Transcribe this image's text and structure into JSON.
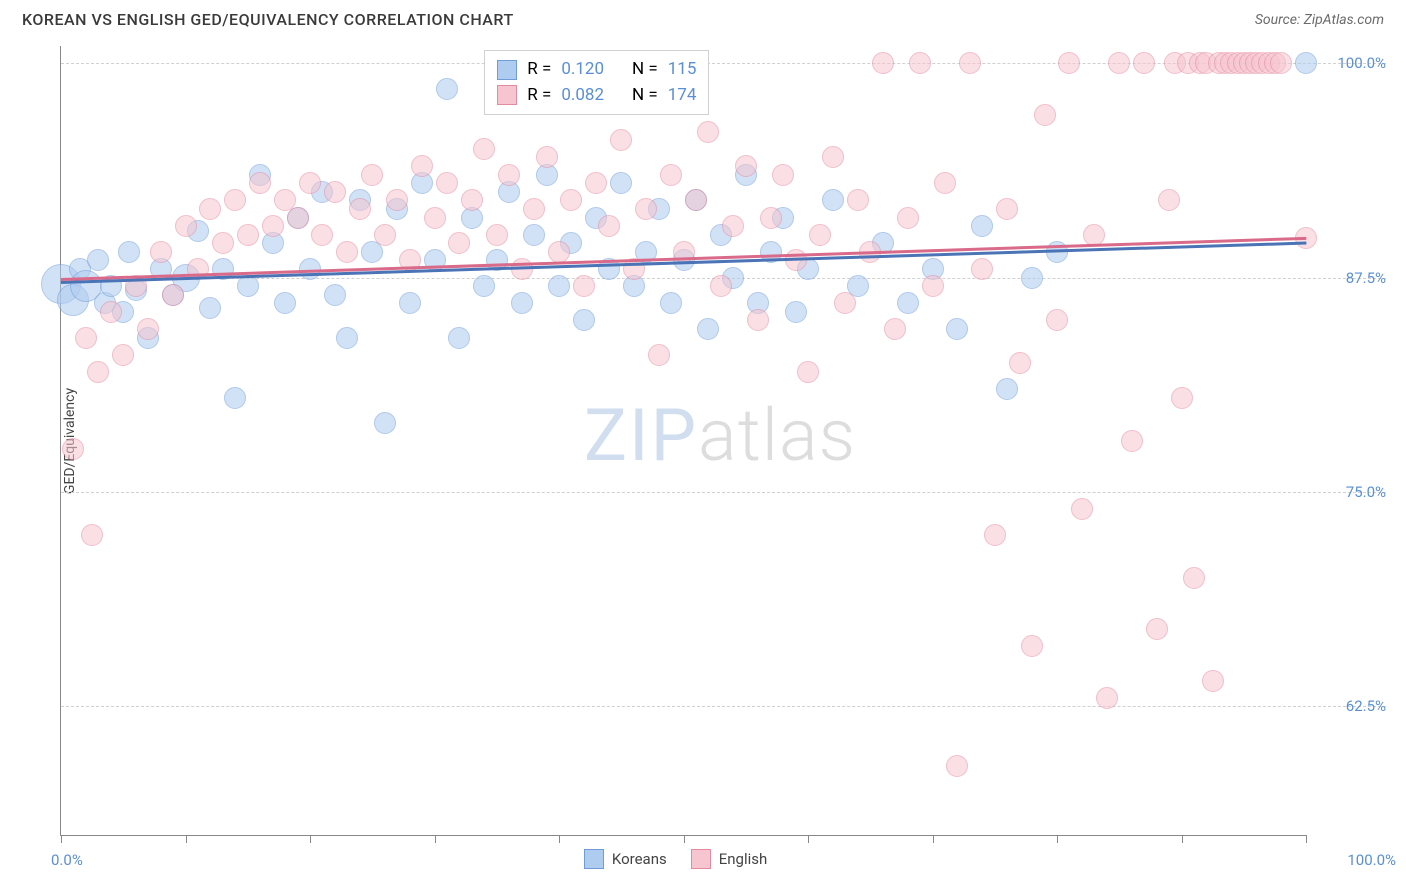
{
  "header": {
    "title": "KOREAN VS ENGLISH GED/EQUIVALENCY CORRELATION CHART",
    "source": "Source: ZipAtlas.com"
  },
  "chart": {
    "type": "scatter",
    "yaxis_title": "GED/Equivalency",
    "background_color": "#ffffff",
    "grid_color": "#d0d0d0",
    "axis_color": "#888888",
    "xlim": [
      0,
      100
    ],
    "ylim": [
      55,
      101
    ],
    "xticks": [
      0,
      10,
      20,
      30,
      40,
      50,
      60,
      70,
      80,
      90,
      100
    ],
    "xtick_labels": {
      "left": "0.0%",
      "right": "100.0%"
    },
    "yticks": [
      {
        "v": 62.5,
        "label": "62.5%"
      },
      {
        "v": 75.0,
        "label": "75.0%"
      },
      {
        "v": 87.5,
        "label": "87.5%"
      },
      {
        "v": 100.0,
        "label": "100.0%"
      }
    ],
    "tick_label_color": "#5a8fd6",
    "tick_label_fontsize": 15,
    "watermark": {
      "part1": "ZIP",
      "part2": "atlas"
    },
    "series": [
      {
        "name": "Koreans",
        "fill": "#aeccf0",
        "stroke": "#6f9dd9",
        "marker_radius": 11,
        "R_label": "R =",
        "R": "0.120",
        "N_label": "N =",
        "N": "115",
        "trend": {
          "x1": 0,
          "y1": 87.3,
          "x2": 100,
          "y2": 89.6,
          "color": "#4a74b5",
          "width": 3
        },
        "points": [
          {
            "x": 0,
            "y": 87.1,
            "r": 20
          },
          {
            "x": 1,
            "y": 86.2,
            "r": 16
          },
          {
            "x": 1.5,
            "y": 88.0
          },
          {
            "x": 2,
            "y": 87.0,
            "r": 16
          },
          {
            "x": 3,
            "y": 88.5
          },
          {
            "x": 3.5,
            "y": 86.0
          },
          {
            "x": 4,
            "y": 87.0
          },
          {
            "x": 5,
            "y": 85.5
          },
          {
            "x": 5.5,
            "y": 89.0
          },
          {
            "x": 6,
            "y": 86.8
          },
          {
            "x": 7,
            "y": 84.0
          },
          {
            "x": 8,
            "y": 88.0
          },
          {
            "x": 9,
            "y": 86.5
          },
          {
            "x": 10,
            "y": 87.5,
            "r": 14
          },
          {
            "x": 11,
            "y": 90.2
          },
          {
            "x": 12,
            "y": 85.7
          },
          {
            "x": 13,
            "y": 88.0
          },
          {
            "x": 14,
            "y": 80.5
          },
          {
            "x": 15,
            "y": 87.0
          },
          {
            "x": 16,
            "y": 93.5
          },
          {
            "x": 17,
            "y": 89.5
          },
          {
            "x": 18,
            "y": 86.0
          },
          {
            "x": 19,
            "y": 91.0
          },
          {
            "x": 20,
            "y": 88.0
          },
          {
            "x": 21,
            "y": 92.5
          },
          {
            "x": 22,
            "y": 86.5
          },
          {
            "x": 23,
            "y": 84.0
          },
          {
            "x": 24,
            "y": 92.0
          },
          {
            "x": 25,
            "y": 89.0
          },
          {
            "x": 26,
            "y": 79.0
          },
          {
            "x": 27,
            "y": 91.5
          },
          {
            "x": 28,
            "y": 86.0
          },
          {
            "x": 29,
            "y": 93.0
          },
          {
            "x": 30,
            "y": 88.5
          },
          {
            "x": 31,
            "y": 98.5
          },
          {
            "x": 32,
            "y": 84.0
          },
          {
            "x": 33,
            "y": 91.0
          },
          {
            "x": 34,
            "y": 87.0
          },
          {
            "x": 35,
            "y": 88.5
          },
          {
            "x": 36,
            "y": 92.5
          },
          {
            "x": 37,
            "y": 86.0
          },
          {
            "x": 38,
            "y": 90.0
          },
          {
            "x": 39,
            "y": 93.5
          },
          {
            "x": 40,
            "y": 87.0
          },
          {
            "x": 41,
            "y": 89.5
          },
          {
            "x": 42,
            "y": 85.0
          },
          {
            "x": 43,
            "y": 91.0
          },
          {
            "x": 44,
            "y": 88.0
          },
          {
            "x": 45,
            "y": 93.0
          },
          {
            "x": 46,
            "y": 87.0
          },
          {
            "x": 47,
            "y": 89.0
          },
          {
            "x": 48,
            "y": 91.5
          },
          {
            "x": 49,
            "y": 86.0
          },
          {
            "x": 50,
            "y": 88.5
          },
          {
            "x": 51,
            "y": 92.0
          },
          {
            "x": 52,
            "y": 84.5
          },
          {
            "x": 53,
            "y": 90.0
          },
          {
            "x": 54,
            "y": 87.5
          },
          {
            "x": 55,
            "y": 93.5
          },
          {
            "x": 56,
            "y": 86.0
          },
          {
            "x": 57,
            "y": 89.0
          },
          {
            "x": 58,
            "y": 91.0
          },
          {
            "x": 59,
            "y": 85.5
          },
          {
            "x": 60,
            "y": 88.0
          },
          {
            "x": 62,
            "y": 92.0
          },
          {
            "x": 64,
            "y": 87.0
          },
          {
            "x": 66,
            "y": 89.5
          },
          {
            "x": 68,
            "y": 86.0
          },
          {
            "x": 70,
            "y": 88.0
          },
          {
            "x": 72,
            "y": 84.5
          },
          {
            "x": 74,
            "y": 90.5
          },
          {
            "x": 76,
            "y": 81.0
          },
          {
            "x": 78,
            "y": 87.5
          },
          {
            "x": 80,
            "y": 89.0
          },
          {
            "x": 100,
            "y": 100.0
          }
        ]
      },
      {
        "name": "English",
        "fill": "#f6c5cf",
        "stroke": "#e68aa0",
        "marker_radius": 11,
        "R_label": "R =",
        "R": "0.082",
        "N_label": "N =",
        "N": "174",
        "trend": {
          "x1": 0,
          "y1": 87.5,
          "x2": 100,
          "y2": 89.9,
          "color": "#d96a8a",
          "width": 3
        },
        "points": [
          {
            "x": 1,
            "y": 77.5
          },
          {
            "x": 2,
            "y": 84.0
          },
          {
            "x": 2.5,
            "y": 72.5
          },
          {
            "x": 3,
            "y": 82.0
          },
          {
            "x": 4,
            "y": 85.5
          },
          {
            "x": 5,
            "y": 83.0
          },
          {
            "x": 6,
            "y": 87.0
          },
          {
            "x": 7,
            "y": 84.5
          },
          {
            "x": 8,
            "y": 89.0
          },
          {
            "x": 9,
            "y": 86.5
          },
          {
            "x": 10,
            "y": 90.5
          },
          {
            "x": 11,
            "y": 88.0
          },
          {
            "x": 12,
            "y": 91.5
          },
          {
            "x": 13,
            "y": 89.5
          },
          {
            "x": 14,
            "y": 92.0
          },
          {
            "x": 15,
            "y": 90.0
          },
          {
            "x": 16,
            "y": 93.0
          },
          {
            "x": 17,
            "y": 90.5
          },
          {
            "x": 18,
            "y": 92.0
          },
          {
            "x": 19,
            "y": 91.0
          },
          {
            "x": 20,
            "y": 93.0
          },
          {
            "x": 21,
            "y": 90.0
          },
          {
            "x": 22,
            "y": 92.5
          },
          {
            "x": 23,
            "y": 89.0
          },
          {
            "x": 24,
            "y": 91.5
          },
          {
            "x": 25,
            "y": 93.5
          },
          {
            "x": 26,
            "y": 90.0
          },
          {
            "x": 27,
            "y": 92.0
          },
          {
            "x": 28,
            "y": 88.5
          },
          {
            "x": 29,
            "y": 94.0
          },
          {
            "x": 30,
            "y": 91.0
          },
          {
            "x": 31,
            "y": 93.0
          },
          {
            "x": 32,
            "y": 89.5
          },
          {
            "x": 33,
            "y": 92.0
          },
          {
            "x": 34,
            "y": 95.0
          },
          {
            "x": 35,
            "y": 90.0
          },
          {
            "x": 36,
            "y": 93.5
          },
          {
            "x": 37,
            "y": 88.0
          },
          {
            "x": 38,
            "y": 91.5
          },
          {
            "x": 39,
            "y": 94.5
          },
          {
            "x": 40,
            "y": 89.0
          },
          {
            "x": 41,
            "y": 92.0
          },
          {
            "x": 42,
            "y": 87.0
          },
          {
            "x": 43,
            "y": 93.0
          },
          {
            "x": 44,
            "y": 90.5
          },
          {
            "x": 45,
            "y": 95.5
          },
          {
            "x": 46,
            "y": 88.0
          },
          {
            "x": 47,
            "y": 91.5
          },
          {
            "x": 48,
            "y": 83.0
          },
          {
            "x": 49,
            "y": 93.5
          },
          {
            "x": 50,
            "y": 89.0
          },
          {
            "x": 51,
            "y": 92.0
          },
          {
            "x": 52,
            "y": 96.0
          },
          {
            "x": 53,
            "y": 87.0
          },
          {
            "x": 54,
            "y": 90.5
          },
          {
            "x": 55,
            "y": 94.0
          },
          {
            "x": 56,
            "y": 85.0
          },
          {
            "x": 57,
            "y": 91.0
          },
          {
            "x": 58,
            "y": 93.5
          },
          {
            "x": 59,
            "y": 88.5
          },
          {
            "x": 60,
            "y": 82.0
          },
          {
            "x": 61,
            "y": 90.0
          },
          {
            "x": 62,
            "y": 94.5
          },
          {
            "x": 63,
            "y": 86.0
          },
          {
            "x": 64,
            "y": 92.0
          },
          {
            "x": 65,
            "y": 89.0
          },
          {
            "x": 66,
            "y": 100.0
          },
          {
            "x": 67,
            "y": 84.5
          },
          {
            "x": 68,
            "y": 91.0
          },
          {
            "x": 69,
            "y": 100.0
          },
          {
            "x": 70,
            "y": 87.0
          },
          {
            "x": 71,
            "y": 93.0
          },
          {
            "x": 72,
            "y": 59.0
          },
          {
            "x": 73,
            "y": 100.0
          },
          {
            "x": 74,
            "y": 88.0
          },
          {
            "x": 75,
            "y": 72.5
          },
          {
            "x": 76,
            "y": 91.5
          },
          {
            "x": 77,
            "y": 82.5
          },
          {
            "x": 78,
            "y": 66.0
          },
          {
            "x": 79,
            "y": 97.0
          },
          {
            "x": 80,
            "y": 85.0
          },
          {
            "x": 81,
            "y": 100.0
          },
          {
            "x": 82,
            "y": 74.0
          },
          {
            "x": 83,
            "y": 90.0
          },
          {
            "x": 84,
            "y": 63.0
          },
          {
            "x": 85,
            "y": 100.0
          },
          {
            "x": 86,
            "y": 78.0
          },
          {
            "x": 87,
            "y": 100.0
          },
          {
            "x": 88,
            "y": 67.0
          },
          {
            "x": 89,
            "y": 92.0
          },
          {
            "x": 89.5,
            "y": 100.0
          },
          {
            "x": 90,
            "y": 80.5
          },
          {
            "x": 90.5,
            "y": 100.0
          },
          {
            "x": 91,
            "y": 70.0
          },
          {
            "x": 91.5,
            "y": 100.0
          },
          {
            "x": 92,
            "y": 100.0
          },
          {
            "x": 92.5,
            "y": 64.0
          },
          {
            "x": 93,
            "y": 100.0
          },
          {
            "x": 93.5,
            "y": 100.0
          },
          {
            "x": 94,
            "y": 100.0
          },
          {
            "x": 94.5,
            "y": 100.0
          },
          {
            "x": 95,
            "y": 100.0
          },
          {
            "x": 95.5,
            "y": 100.0
          },
          {
            "x": 96,
            "y": 100.0
          },
          {
            "x": 96.5,
            "y": 100.0
          },
          {
            "x": 97,
            "y": 100.0
          },
          {
            "x": 97.5,
            "y": 100.0
          },
          {
            "x": 98,
            "y": 100.0
          },
          {
            "x": 100,
            "y": 89.8
          }
        ]
      }
    ]
  }
}
